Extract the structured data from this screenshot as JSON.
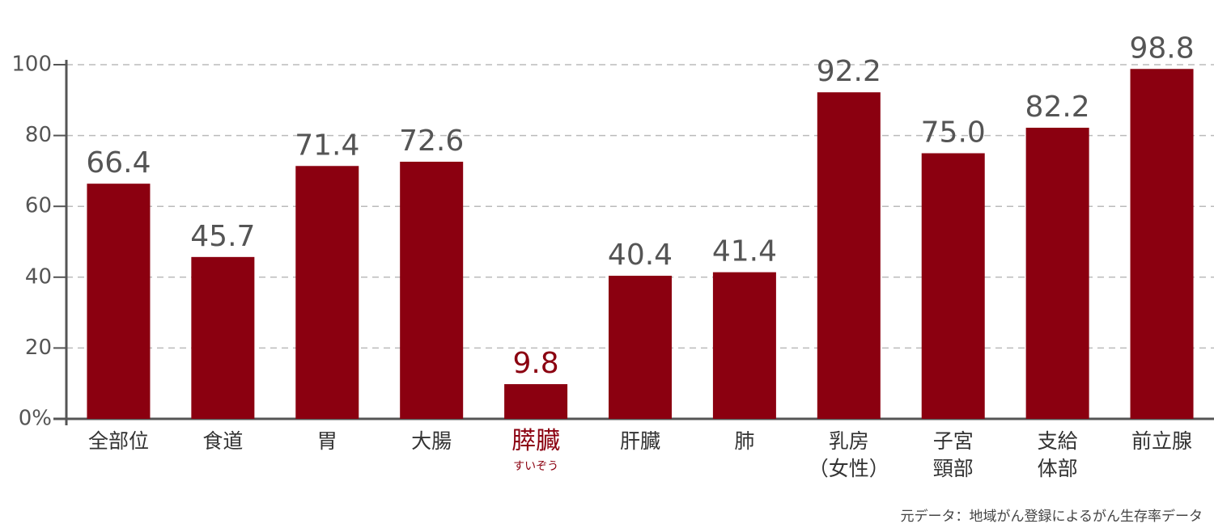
{
  "chart_data": {
    "type": "bar",
    "categories": [
      "全部位",
      "食道",
      "胃",
      "大腸",
      "膵臓",
      "肝臓",
      "肺",
      "乳房\n（女性）",
      "子宮\n頸部",
      "支給\n体部",
      "前立腺"
    ],
    "values": [
      66.4,
      45.7,
      71.4,
      72.6,
      9.8,
      40.4,
      41.4,
      92.2,
      75.0,
      82.2,
      98.8
    ],
    "value_labels": [
      "66.4",
      "45.7",
      "71.4",
      "72.6",
      "9.8",
      "40.4",
      "41.4",
      "92.2",
      "75.0",
      "82.2",
      "98.8"
    ],
    "color": "#8b0010",
    "ylim": [
      0,
      100
    ],
    "yticks": [
      {
        "value": 0,
        "label": "0%"
      },
      20,
      40,
      60,
      80,
      100
    ],
    "grid": true,
    "highlight": {
      "index": 4,
      "reading": "すいぞう",
      "color": "#8b0010"
    },
    "source": "元データ：地域がん登録によるがん生存率データ"
  }
}
